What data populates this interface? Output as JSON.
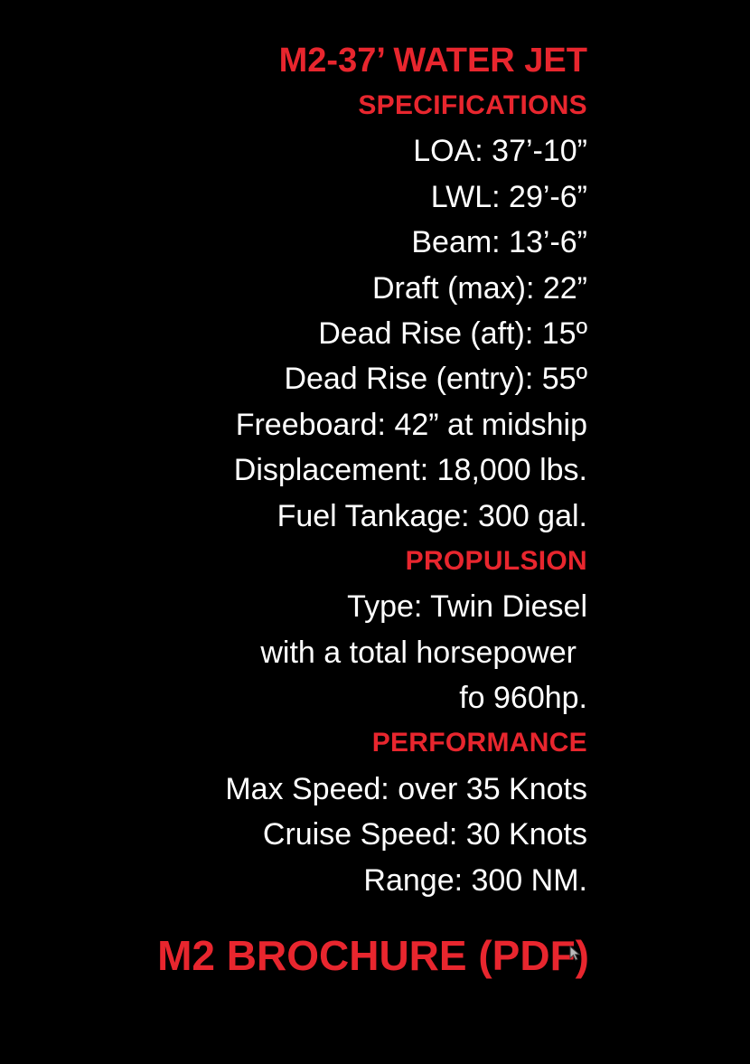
{
  "title": "M2-37’ WATER JET",
  "sections": {
    "specifications": {
      "heading": "SPECIFICATIONS",
      "items": [
        "LOA: 37’-10”",
        "LWL: 29’-6”",
        "Beam: 13’-6”",
        "Draft (max): 22”",
        "Dead Rise (aft): 15º",
        "Dead Rise (entry): 55º",
        "Freeboard: 42” at midship",
        "Displacement: 18,000 lbs.",
        "Fuel Tankage: 300 gal."
      ]
    },
    "propulsion": {
      "heading": "PROPULSION",
      "items": [
        "Type: Twin Diesel",
        "with a total horsepower",
        "fo 960hp."
      ]
    },
    "performance": {
      "heading": "PERFORMANCE",
      "items": [
        "Max Speed: over 35 Knots",
        "Cruise Speed: 30 Knots",
        "Range: 300 NM."
      ]
    }
  },
  "brochure_link": "M2 BROCHURE (PDF)",
  "colors": {
    "accent": "#e8262e",
    "text": "#ffffff",
    "background": "#000000"
  },
  "icons": {
    "cursor": "mouse-pointer-icon"
  }
}
